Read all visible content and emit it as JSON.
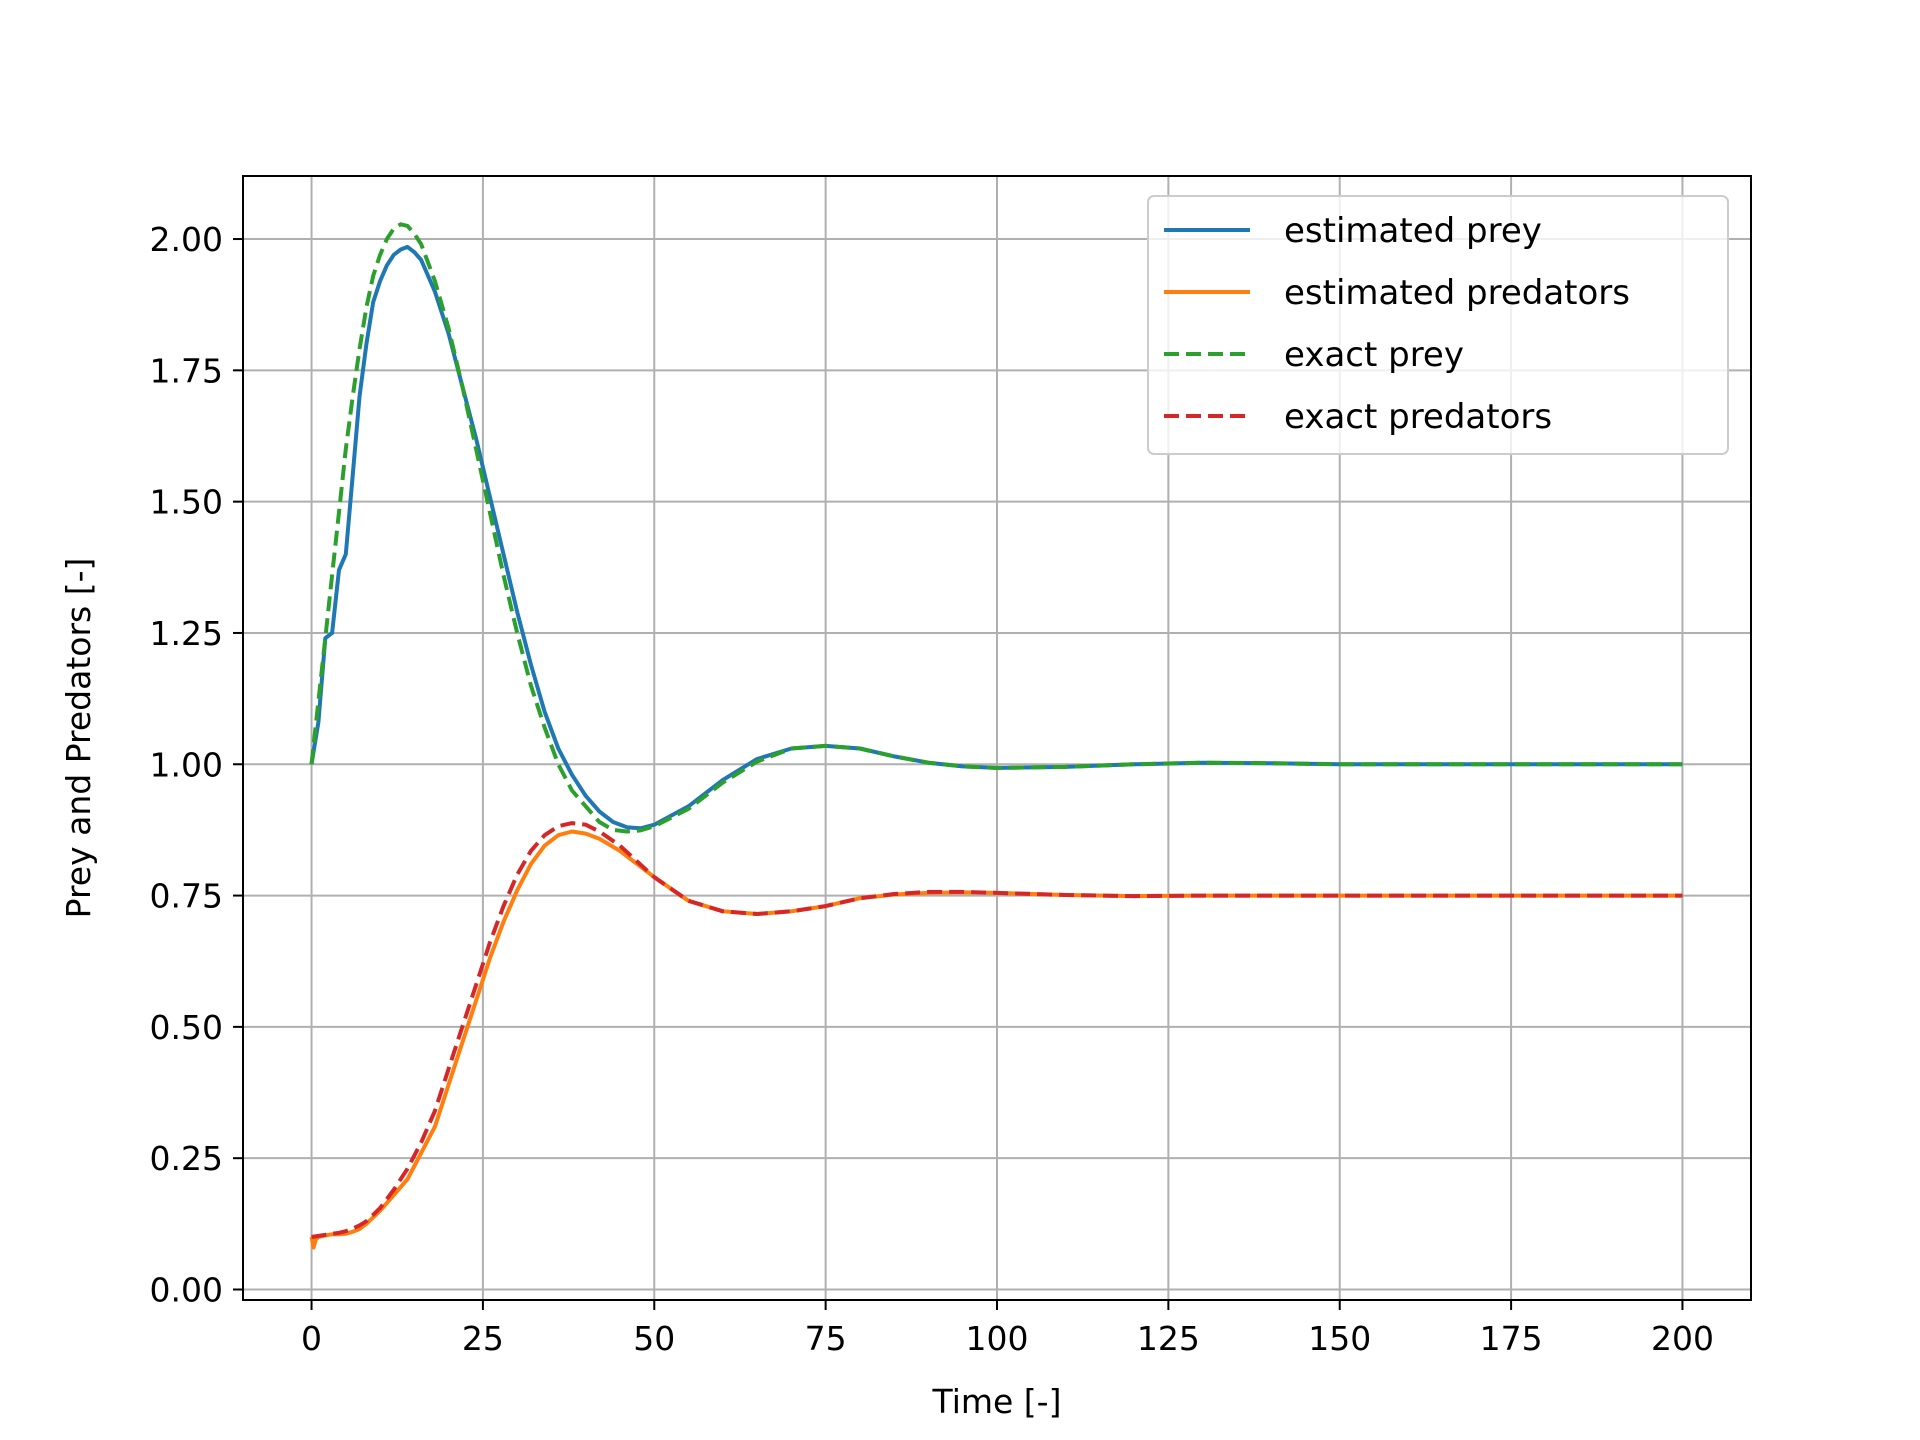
{
  "chart_data": {
    "type": "line",
    "title": "",
    "xlabel": "Time [-]",
    "ylabel": "Prey and Predators [-]",
    "xlim": [
      -10,
      210
    ],
    "ylim": [
      -0.02,
      2.12
    ],
    "xticks": [
      0,
      25,
      50,
      75,
      100,
      125,
      150,
      175,
      200
    ],
    "xtick_labels": [
      "0",
      "25",
      "50",
      "75",
      "100",
      "125",
      "150",
      "175",
      "200"
    ],
    "yticks": [
      0.0,
      0.25,
      0.5,
      0.75,
      1.0,
      1.25,
      1.5,
      1.75,
      2.0
    ],
    "ytick_labels": [
      "0.00",
      "0.25",
      "0.50",
      "0.75",
      "1.00",
      "1.25",
      "1.50",
      "1.75",
      "2.00"
    ],
    "grid": true,
    "legend_position": "top-right",
    "series": [
      {
        "name": "estimated prey",
        "color": "#1f77b4",
        "style": "solid",
        "x": [
          0,
          1,
          2,
          3,
          4,
          5,
          6,
          7,
          8,
          9,
          10,
          11,
          12,
          13,
          14,
          15,
          16,
          18,
          20,
          22,
          24,
          26,
          28,
          30,
          32,
          34,
          36,
          38,
          40,
          42,
          44,
          46,
          48,
          50,
          55,
          60,
          65,
          70,
          75,
          80,
          85,
          90,
          95,
          100,
          110,
          120,
          130,
          140,
          150,
          160,
          170,
          180,
          190,
          200
        ],
        "y": [
          1.0,
          1.08,
          1.24,
          1.25,
          1.37,
          1.4,
          1.55,
          1.7,
          1.8,
          1.88,
          1.92,
          1.95,
          1.97,
          1.98,
          1.985,
          1.975,
          1.96,
          1.9,
          1.82,
          1.72,
          1.62,
          1.51,
          1.4,
          1.29,
          1.19,
          1.1,
          1.03,
          0.98,
          0.94,
          0.91,
          0.89,
          0.88,
          0.878,
          0.885,
          0.92,
          0.97,
          1.01,
          1.03,
          1.035,
          1.03,
          1.015,
          1.003,
          0.996,
          0.993,
          0.995,
          1.0,
          1.003,
          1.002,
          1.0,
          1.0,
          1.0,
          1.0,
          1.0,
          1.0
        ]
      },
      {
        "name": "estimated predators",
        "color": "#ff7f0e",
        "style": "solid",
        "x": [
          0,
          0.3,
          0.6,
          1,
          2,
          3,
          4,
          5,
          6,
          7,
          8,
          10,
          12,
          14,
          16,
          18,
          20,
          22,
          24,
          26,
          28,
          30,
          32,
          34,
          36,
          38,
          40,
          42,
          45,
          50,
          55,
          60,
          65,
          70,
          75,
          80,
          85,
          90,
          95,
          100,
          110,
          120,
          130,
          140,
          150,
          160,
          170,
          180,
          190,
          200
        ],
        "y": [
          0.1,
          0.08,
          0.095,
          0.1,
          0.103,
          0.105,
          0.105,
          0.106,
          0.11,
          0.115,
          0.125,
          0.15,
          0.18,
          0.21,
          0.26,
          0.31,
          0.39,
          0.47,
          0.55,
          0.63,
          0.7,
          0.76,
          0.81,
          0.845,
          0.865,
          0.872,
          0.868,
          0.858,
          0.835,
          0.785,
          0.74,
          0.72,
          0.715,
          0.72,
          0.73,
          0.745,
          0.752,
          0.755,
          0.756,
          0.755,
          0.751,
          0.749,
          0.75,
          0.75,
          0.75,
          0.75,
          0.75,
          0.75,
          0.75,
          0.75
        ]
      },
      {
        "name": "exact prey",
        "color": "#2ca02c",
        "style": "dashed",
        "x": [
          0,
          1,
          2,
          3,
          4,
          5,
          6,
          7,
          8,
          9,
          10,
          11,
          12,
          13,
          14,
          15,
          16,
          18,
          20,
          22,
          24,
          26,
          28,
          30,
          32,
          34,
          36,
          38,
          40,
          42,
          44,
          46,
          48,
          50,
          55,
          60,
          65,
          70,
          75,
          80,
          85,
          90,
          95,
          100,
          110,
          120,
          130,
          140,
          150,
          160,
          170,
          180,
          190,
          200
        ],
        "y": [
          1.0,
          1.12,
          1.24,
          1.36,
          1.48,
          1.6,
          1.7,
          1.79,
          1.87,
          1.93,
          1.97,
          2.0,
          2.02,
          2.028,
          2.025,
          2.01,
          1.99,
          1.92,
          1.83,
          1.72,
          1.6,
          1.48,
          1.36,
          1.25,
          1.15,
          1.07,
          1.0,
          0.95,
          0.92,
          0.89,
          0.875,
          0.872,
          0.874,
          0.882,
          0.915,
          0.965,
          1.005,
          1.03,
          1.035,
          1.03,
          1.015,
          1.003,
          0.996,
          0.993,
          0.995,
          1.0,
          1.003,
          1.002,
          1.0,
          1.0,
          1.0,
          1.0,
          1.0,
          1.0
        ]
      },
      {
        "name": "exact predators",
        "color": "#d62728",
        "style": "dashed",
        "x": [
          0,
          1,
          2,
          3,
          4,
          5,
          6,
          7,
          8,
          10,
          12,
          14,
          16,
          18,
          20,
          22,
          24,
          26,
          28,
          30,
          32,
          34,
          36,
          38,
          40,
          42,
          45,
          50,
          55,
          60,
          65,
          70,
          75,
          80,
          85,
          90,
          95,
          100,
          110,
          120,
          130,
          140,
          150,
          160,
          170,
          180,
          190,
          200
        ],
        "y": [
          0.1,
          0.102,
          0.104,
          0.106,
          0.108,
          0.111,
          0.116,
          0.122,
          0.13,
          0.155,
          0.19,
          0.23,
          0.28,
          0.34,
          0.42,
          0.5,
          0.58,
          0.66,
          0.73,
          0.79,
          0.835,
          0.865,
          0.882,
          0.888,
          0.885,
          0.872,
          0.845,
          0.785,
          0.74,
          0.72,
          0.715,
          0.72,
          0.73,
          0.745,
          0.753,
          0.757,
          0.757,
          0.755,
          0.751,
          0.749,
          0.75,
          0.75,
          0.75,
          0.75,
          0.75,
          0.75,
          0.75,
          0.75
        ]
      }
    ]
  }
}
